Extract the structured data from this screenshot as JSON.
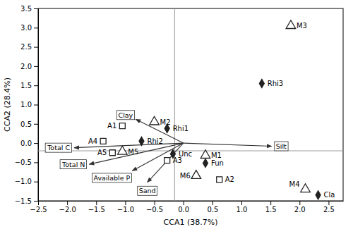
{
  "chart_data": {
    "type": "scatter",
    "xlabel": "CCA1 (38.7%)",
    "ylabel": "CCA2 (28.4%)",
    "xlim": [
      -2.5,
      2.75
    ],
    "ylim": [
      -1.5,
      3.5
    ],
    "xticks": [
      {
        "value": -2.5,
        "label": "−2.5"
      },
      {
        "value": -2.0,
        "label": "−2.0"
      },
      {
        "value": -1.5,
        "label": "−1.5"
      },
      {
        "value": -1.0,
        "label": "−1.0"
      },
      {
        "value": -0.5,
        "label": "−0.5"
      },
      {
        "value": 0.0,
        "label": "0.0"
      },
      {
        "value": 0.5,
        "label": "0.5"
      },
      {
        "value": 1.0,
        "label": "1.0"
      },
      {
        "value": 1.5,
        "label": "1.5"
      },
      {
        "value": 2.0,
        "label": "2.0"
      },
      {
        "value": 2.5,
        "label": "2.5"
      }
    ],
    "yticks": [
      {
        "value": -1.5,
        "label": "−1.5"
      },
      {
        "value": -1.0,
        "label": "−1.0"
      },
      {
        "value": -0.5,
        "label": "−0.5"
      },
      {
        "value": 0.0,
        "label": "0.0"
      },
      {
        "value": 0.5,
        "label": "0.5"
      },
      {
        "value": 1.0,
        "label": "1.0"
      },
      {
        "value": 1.5,
        "label": "1.5"
      },
      {
        "value": 2.0,
        "label": "2.0"
      },
      {
        "value": 2.5,
        "label": "2.5"
      },
      {
        "value": 3.0,
        "label": "3.0"
      },
      {
        "value": 3.5,
        "label": "3.5"
      }
    ],
    "reference_lines": {
      "x": -0.15,
      "y": -0.2
    },
    "background": "#ffffff",
    "series": [
      {
        "type": "arrow",
        "labels": [
          "Clay",
          "Total C",
          "Total N",
          "Available P",
          "Sand",
          "Silt"
        ],
        "x": [
          -0.82,
          -1.88,
          -1.62,
          -0.88,
          -0.62,
          1.52
        ],
        "values": [
          0.62,
          -0.12,
          -0.55,
          -0.72,
          -1.02,
          -0.08
        ]
      },
      {
        "marker": "triangle",
        "labels": [
          "M1",
          "M2",
          "M3",
          "M4",
          "M5",
          "M6"
        ],
        "x": [
          0.38,
          -0.5,
          1.85,
          2.1,
          -1.05,
          0.22
        ],
        "values": [
          -0.32,
          0.55,
          3.05,
          -1.2,
          -0.22,
          -0.85
        ]
      },
      {
        "marker": "square",
        "labels": [
          "A1",
          "A2",
          "A3",
          "A4",
          "A5"
        ],
        "x": [
          -1.05,
          0.62,
          -0.28,
          -1.38,
          -1.22
        ],
        "values": [
          0.45,
          -0.95,
          -0.45,
          0.05,
          -0.25
        ]
      },
      {
        "marker": "diamond",
        "labels": [
          "Rhi1",
          "Rhi2",
          "Rhi3",
          "Fun",
          "Cla",
          "Unc"
        ],
        "x": [
          -0.28,
          -0.72,
          1.35,
          0.38,
          2.32,
          -0.18
        ],
        "values": [
          0.38,
          0.05,
          1.55,
          -0.52,
          -1.35,
          -0.28
        ]
      }
    ]
  }
}
